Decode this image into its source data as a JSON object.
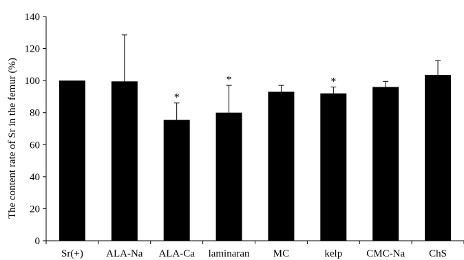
{
  "chart_data": {
    "type": "bar",
    "title": "",
    "xlabel": "",
    "ylabel": "The content rate of Sr in the femur (%)",
    "ylim": [
      0,
      140
    ],
    "yticks": [
      0,
      20,
      40,
      60,
      80,
      100,
      120,
      140
    ],
    "grid": false,
    "legend": "none",
    "bar_color": "#000000",
    "categories": [
      "Sr(+)",
      "ALA-Na",
      "ALA-Ca",
      "laminaran",
      "MC",
      "kelp",
      "CMC-Na",
      "ChS"
    ],
    "values": [
      100,
      99.5,
      75.5,
      80,
      93,
      92,
      96,
      103.5
    ],
    "error_upper": [
      0,
      29,
      10.5,
      17,
      4,
      4,
      3.5,
      9
    ],
    "significance": [
      "",
      "",
      "*",
      "*",
      "",
      "*",
      "",
      ""
    ]
  }
}
